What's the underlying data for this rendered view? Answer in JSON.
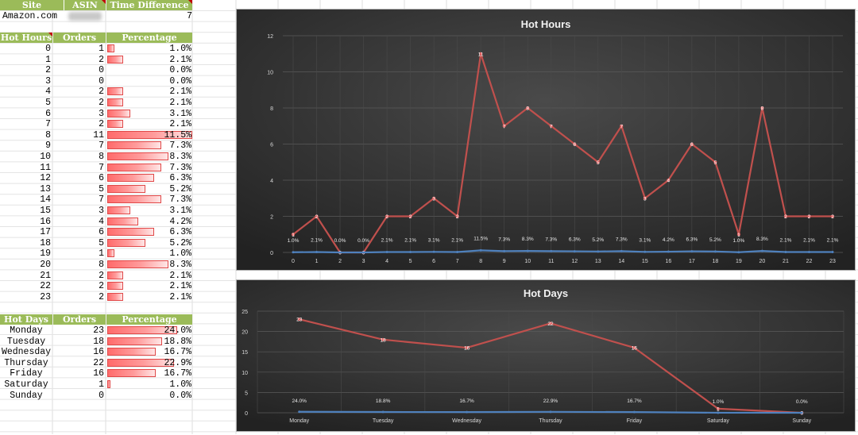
{
  "header": {
    "site_label": "Site",
    "asin_label": "ASIN",
    "time_diff_label": "Time Difference",
    "site_value": "Amazon.com",
    "time_diff_value": "7"
  },
  "hours_table": {
    "col_hour": "Hot Hours",
    "col_orders": "Orders",
    "col_pct": "Percentage",
    "rows": [
      {
        "hour": "0",
        "orders": "1",
        "pct": "1.0%",
        "frac": 0.01
      },
      {
        "hour": "1",
        "orders": "2",
        "pct": "2.1%",
        "frac": 0.021
      },
      {
        "hour": "2",
        "orders": "0",
        "pct": "0.0%",
        "frac": 0.0
      },
      {
        "hour": "3",
        "orders": "0",
        "pct": "0.0%",
        "frac": 0.0
      },
      {
        "hour": "4",
        "orders": "2",
        "pct": "2.1%",
        "frac": 0.021
      },
      {
        "hour": "5",
        "orders": "2",
        "pct": "2.1%",
        "frac": 0.021
      },
      {
        "hour": "6",
        "orders": "3",
        "pct": "3.1%",
        "frac": 0.031
      },
      {
        "hour": "7",
        "orders": "2",
        "pct": "2.1%",
        "frac": 0.021
      },
      {
        "hour": "8",
        "orders": "11",
        "pct": "11.5%",
        "frac": 0.115
      },
      {
        "hour": "9",
        "orders": "7",
        "pct": "7.3%",
        "frac": 0.073
      },
      {
        "hour": "10",
        "orders": "8",
        "pct": "8.3%",
        "frac": 0.083
      },
      {
        "hour": "11",
        "orders": "7",
        "pct": "7.3%",
        "frac": 0.073
      },
      {
        "hour": "12",
        "orders": "6",
        "pct": "6.3%",
        "frac": 0.063
      },
      {
        "hour": "13",
        "orders": "5",
        "pct": "5.2%",
        "frac": 0.052
      },
      {
        "hour": "14",
        "orders": "7",
        "pct": "7.3%",
        "frac": 0.073
      },
      {
        "hour": "15",
        "orders": "3",
        "pct": "3.1%",
        "frac": 0.031
      },
      {
        "hour": "16",
        "orders": "4",
        "pct": "4.2%",
        "frac": 0.042
      },
      {
        "hour": "17",
        "orders": "6",
        "pct": "6.3%",
        "frac": 0.063
      },
      {
        "hour": "18",
        "orders": "5",
        "pct": "5.2%",
        "frac": 0.052
      },
      {
        "hour": "19",
        "orders": "1",
        "pct": "1.0%",
        "frac": 0.01
      },
      {
        "hour": "20",
        "orders": "8",
        "pct": "8.3%",
        "frac": 0.083
      },
      {
        "hour": "21",
        "orders": "2",
        "pct": "2.1%",
        "frac": 0.021
      },
      {
        "hour": "22",
        "orders": "2",
        "pct": "2.1%",
        "frac": 0.021
      },
      {
        "hour": "23",
        "orders": "2",
        "pct": "2.1%",
        "frac": 0.021
      }
    ]
  },
  "days_table": {
    "col_day": "Hot Days",
    "col_orders": "Orders",
    "col_pct": "Percentage",
    "rows": [
      {
        "day": "Monday",
        "orders": "23",
        "pct": "24.0%",
        "frac": 0.24
      },
      {
        "day": "Tuesday",
        "orders": "18",
        "pct": "18.8%",
        "frac": 0.188
      },
      {
        "day": "Wednesday",
        "orders": "16",
        "pct": "16.7%",
        "frac": 0.167
      },
      {
        "day": "Thursday",
        "orders": "22",
        "pct": "22.9%",
        "frac": 0.229
      },
      {
        "day": "Friday",
        "orders": "16",
        "pct": "16.7%",
        "frac": 0.167
      },
      {
        "day": "Saturday",
        "orders": "1",
        "pct": "1.0%",
        "frac": 0.01
      },
      {
        "day": "Sunday",
        "orders": "0",
        "pct": "0.0%",
        "frac": 0.0
      }
    ]
  },
  "colors": {
    "header_green": "#9bbb59",
    "line_red": "#c0504d",
    "line_blue": "#4f81bd",
    "chart_bg": "#2e2e2e"
  },
  "chart_data": [
    {
      "type": "line",
      "title": "Hot Hours",
      "categories": [
        "0",
        "1",
        "2",
        "3",
        "4",
        "5",
        "6",
        "7",
        "8",
        "9",
        "10",
        "11",
        "12",
        "13",
        "14",
        "15",
        "16",
        "17",
        "18",
        "19",
        "20",
        "21",
        "22",
        "23"
      ],
      "series": [
        {
          "values": [
            1,
            2,
            0,
            0,
            2,
            2,
            3,
            2,
            11,
            7,
            8,
            7,
            6,
            5,
            7,
            3,
            4,
            6,
            5,
            1,
            8,
            2,
            2,
            2
          ],
          "color": "#c0504d"
        },
        {
          "values": [
            0.01,
            0.021,
            0.0,
            0.0,
            0.021,
            0.021,
            0.031,
            0.021,
            0.115,
            0.073,
            0.083,
            0.073,
            0.063,
            0.052,
            0.073,
            0.031,
            0.042,
            0.063,
            0.052,
            0.01,
            0.083,
            0.021,
            0.021,
            0.021
          ],
          "labels": [
            "1.0%",
            "2.1%",
            "0.0%",
            "0.0%",
            "2.1%",
            "2.1%",
            "3.1%",
            "2.1%",
            "11.5%",
            "7.3%",
            "8.3%",
            "7.3%",
            "6.3%",
            "5.2%",
            "7.3%",
            "3.1%",
            "4.2%",
            "6.3%",
            "5.2%",
            "1.0%",
            "8.3%",
            "2.1%",
            "2.1%",
            "2.1%"
          ],
          "color": "#4f81bd"
        }
      ],
      "yticks": [
        "0",
        "2",
        "4",
        "6",
        "8",
        "10",
        "12"
      ],
      "ylim": [
        0,
        12
      ],
      "grid": true
    },
    {
      "type": "line",
      "title": "Hot Days",
      "categories": [
        "Monday",
        "Tuesday",
        "Wednesday",
        "Thursday",
        "Friday",
        "Saturday",
        "Sunday"
      ],
      "series": [
        {
          "values": [
            23,
            18,
            16,
            22,
            16,
            1,
            0
          ],
          "color": "#c0504d"
        },
        {
          "values": [
            0.24,
            0.188,
            0.167,
            0.229,
            0.167,
            0.01,
            0.0
          ],
          "labels": [
            "24.0%",
            "18.8%",
            "16.7%",
            "22.9%",
            "16.7%",
            "1.0%",
            "0.0%"
          ],
          "color": "#4f81bd"
        }
      ],
      "yticks": [
        "0",
        "5",
        "10",
        "15",
        "20",
        "25"
      ],
      "ylim": [
        0,
        25
      ],
      "grid": true
    }
  ]
}
